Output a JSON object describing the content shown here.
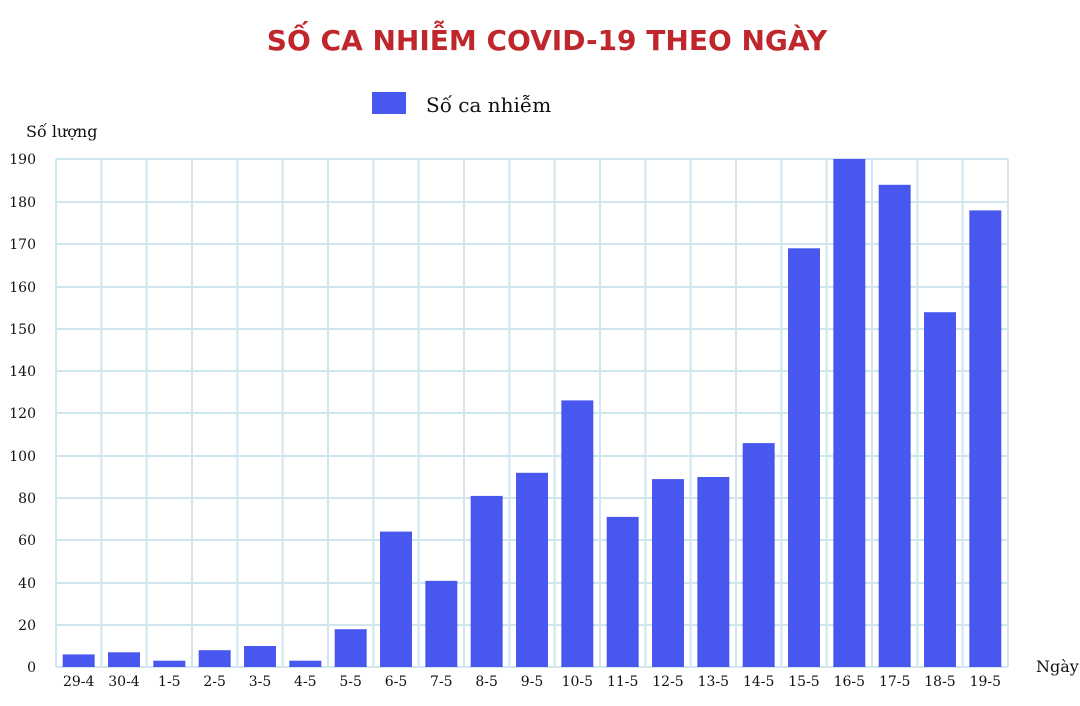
{
  "chart_data": {
    "type": "bar",
    "title": "SỐ CA NHIỄM COVID-19 THEO NGÀY",
    "xlabel": "Ngày",
    "ylabel": "Số lượng",
    "legend": {
      "label": "Số ca nhiễm",
      "placement": "top-center"
    },
    "colors": {
      "bar": "#4858ee",
      "grid": "#cfe6ee",
      "title": "#c0272d"
    },
    "grid": true,
    "categories": [
      "29-4",
      "30-4",
      "1-5",
      "2-5",
      "3-5",
      "4-5",
      "5-5",
      "6-5",
      "7-5",
      "8-5",
      "9-5",
      "10-5",
      "11-5",
      "12-5",
      "13-5",
      "14-5",
      "15-5",
      "16-5",
      "17-5",
      "18-5",
      "19-5"
    ],
    "series": [
      {
        "name": "Số ca nhiễm",
        "values": [
          6,
          7,
          3,
          8,
          10,
          3,
          18,
          64,
          41,
          81,
          92,
          126,
          71,
          89,
          90,
          106,
          169,
          190,
          184,
          154,
          178
        ]
      }
    ],
    "y_ticks": [
      0,
      20,
      40,
      60,
      80,
      100,
      120,
      140,
      150,
      160,
      170,
      180,
      190
    ]
  }
}
